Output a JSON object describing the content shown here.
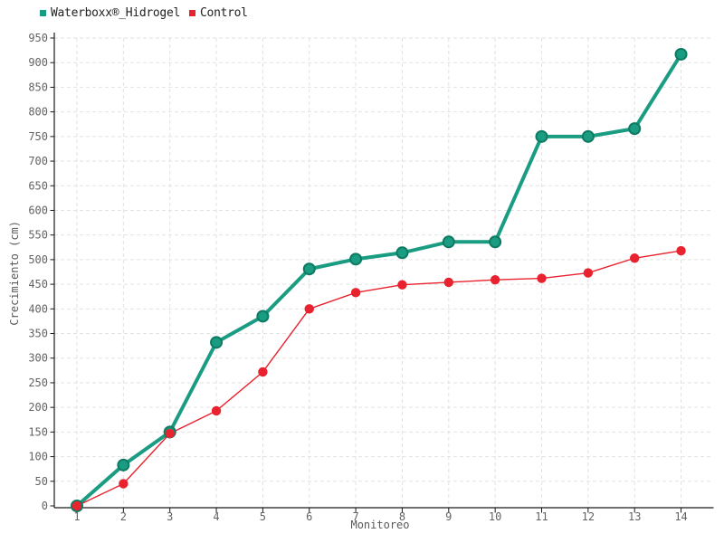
{
  "chart_data": {
    "type": "line",
    "x": [
      1,
      2,
      3,
      4,
      5,
      6,
      7,
      8,
      9,
      10,
      11,
      12,
      13,
      14
    ],
    "series": [
      {
        "name": "Waterboxx®_Hidrogel",
        "color": "#1a9c82",
        "marker_fill": "#1a9c82",
        "marker_stroke": "#0d7a61",
        "marker_radius": 6,
        "line_width": 4,
        "values": [
          0,
          83,
          150,
          332,
          385,
          481,
          501,
          514,
          536,
          536,
          750,
          750,
          766,
          917
        ]
      },
      {
        "name": "Control",
        "color": "#e8222e",
        "marker_fill": "#e8222e",
        "marker_stroke": "#e8222e",
        "marker_radius": 5.2,
        "line_width": 1.4,
        "values": [
          0,
          45,
          147,
          193,
          272,
          400,
          433,
          449,
          454,
          459,
          462,
          473,
          503,
          518
        ]
      }
    ],
    "title": "",
    "xlabel": "Monitoreo",
    "ylabel": "Crecimiento (cm)",
    "ylim": [
      0,
      950
    ],
    "ytick_step": 50,
    "grid": true,
    "legend_position": "top-left"
  },
  "style": {
    "grid_color": "#e2e2e2",
    "axis_color": "#1a1a1a",
    "tick_label_color": "#636363",
    "background": "#ffffff"
  }
}
